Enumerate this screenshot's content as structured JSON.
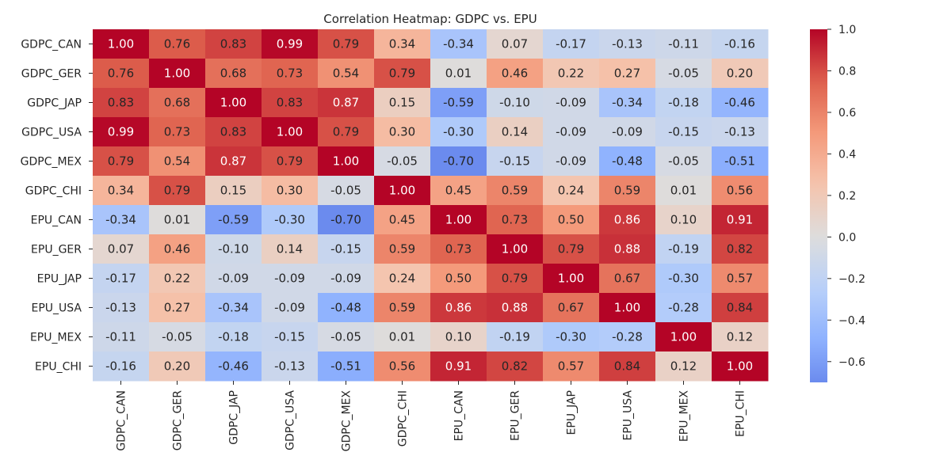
{
  "chart_data": {
    "type": "heatmap",
    "title": "Correlation Heatmap: GDPC vs. EPU",
    "xlabel": "",
    "ylabel": "",
    "rows": [
      "GDPC_CAN",
      "GDPC_GER",
      "GDPC_JAP",
      "GDPC_USA",
      "GDPC_MEX",
      "GDPC_CHI",
      "EPU_CAN",
      "EPU_GER",
      "EPU_JAP",
      "EPU_USA",
      "EPU_MEX",
      "EPU_CHI"
    ],
    "columns": [
      "GDPC_CAN",
      "GDPC_GER",
      "GDPC_JAP",
      "GDPC_USA",
      "GDPC_MEX",
      "GDPC_CHI",
      "EPU_CAN",
      "EPU_GER",
      "EPU_JAP",
      "EPU_USA",
      "EPU_MEX",
      "EPU_CHI"
    ],
    "values": [
      [
        1.0,
        0.76,
        0.83,
        0.99,
        0.79,
        0.34,
        -0.34,
        0.07,
        -0.17,
        -0.13,
        -0.11,
        -0.16
      ],
      [
        0.76,
        1.0,
        0.68,
        0.73,
        0.54,
        0.79,
        0.01,
        0.46,
        0.22,
        0.27,
        -0.05,
        0.2
      ],
      [
        0.83,
        0.68,
        1.0,
        0.83,
        0.87,
        0.15,
        -0.59,
        -0.1,
        -0.09,
        -0.34,
        -0.18,
        -0.46
      ],
      [
        0.99,
        0.73,
        0.83,
        1.0,
        0.79,
        0.3,
        -0.3,
        0.14,
        -0.09,
        -0.09,
        -0.15,
        -0.13
      ],
      [
        0.79,
        0.54,
        0.87,
        0.79,
        1.0,
        -0.05,
        -0.7,
        -0.15,
        -0.09,
        -0.48,
        -0.05,
        -0.51
      ],
      [
        0.34,
        0.79,
        0.15,
        0.3,
        -0.05,
        1.0,
        0.45,
        0.59,
        0.24,
        0.59,
        0.01,
        0.56
      ],
      [
        -0.34,
        0.01,
        -0.59,
        -0.3,
        -0.7,
        0.45,
        1.0,
        0.73,
        0.5,
        0.86,
        0.1,
        0.91
      ],
      [
        0.07,
        0.46,
        -0.1,
        0.14,
        -0.15,
        0.59,
        0.73,
        1.0,
        0.79,
        0.88,
        -0.19,
        0.82
      ],
      [
        -0.17,
        0.22,
        -0.09,
        -0.09,
        -0.09,
        0.24,
        0.5,
        0.79,
        1.0,
        0.67,
        -0.3,
        0.57
      ],
      [
        -0.13,
        0.27,
        -0.34,
        -0.09,
        -0.48,
        0.59,
        0.86,
        0.88,
        0.67,
        1.0,
        -0.28,
        0.84
      ],
      [
        -0.11,
        -0.05,
        -0.18,
        -0.15,
        -0.05,
        0.01,
        0.1,
        -0.19,
        -0.3,
        -0.28,
        1.0,
        0.12
      ],
      [
        -0.16,
        0.2,
        -0.46,
        -0.13,
        -0.51,
        0.56,
        0.91,
        0.82,
        0.57,
        0.84,
        0.12,
        1.0
      ]
    ],
    "value_format": "0.00",
    "colormap": "coolwarm",
    "vmin": -0.7,
    "vmax": 1.0,
    "center": 0.0,
    "colorbar": {
      "ticks": [
        1.0,
        0.8,
        0.6,
        0.4,
        0.2,
        0.0,
        -0.2,
        -0.4,
        -0.6
      ],
      "tick_labels": [
        "1.0",
        "0.8",
        "0.6",
        "0.4",
        "0.2",
        "0.0",
        "−0.2",
        "−0.4",
        "−0.6"
      ]
    }
  }
}
